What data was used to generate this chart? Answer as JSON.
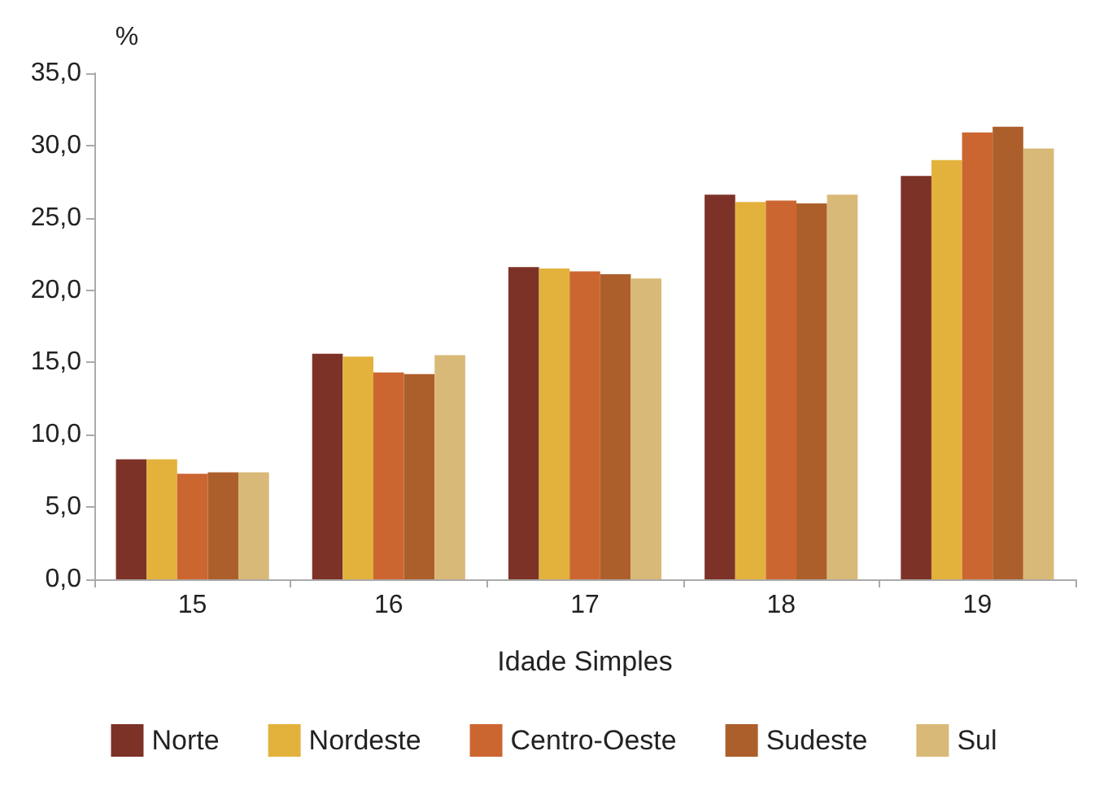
{
  "chart_data": {
    "type": "bar",
    "ylabel": "%",
    "xlabel": "Idade Simples",
    "categories": [
      "15",
      "16",
      "17",
      "18",
      "19"
    ],
    "series": [
      {
        "name": "Norte",
        "color": "#7d3227",
        "values": [
          8.3,
          15.6,
          21.6,
          26.6,
          27.9
        ]
      },
      {
        "name": "Nordeste",
        "color": "#e3b23c",
        "values": [
          8.3,
          15.4,
          21.5,
          26.1,
          29.0
        ]
      },
      {
        "name": "Centro-Oeste",
        "color": "#cc6630",
        "values": [
          7.3,
          14.3,
          21.3,
          26.2,
          30.9
        ]
      },
      {
        "name": "Sudeste",
        "color": "#ad5f2b",
        "values": [
          7.4,
          14.2,
          21.1,
          26.0,
          31.3
        ]
      },
      {
        "name": "Sul",
        "color": "#d9b977",
        "values": [
          7.4,
          15.5,
          20.8,
          26.6,
          29.8
        ]
      }
    ],
    "ylim": [
      0,
      35
    ],
    "yticks": [
      {
        "value": 0,
        "label": "0,0"
      },
      {
        "value": 5,
        "label": "5,0"
      },
      {
        "value": 10,
        "label": "10,0"
      },
      {
        "value": 15,
        "label": "15,0"
      },
      {
        "value": 20,
        "label": "20,0"
      },
      {
        "value": 25,
        "label": "25,0"
      },
      {
        "value": 30,
        "label": "30,0"
      },
      {
        "value": 35,
        "label": "35,0"
      }
    ],
    "grid": false,
    "legend": "bottom"
  }
}
